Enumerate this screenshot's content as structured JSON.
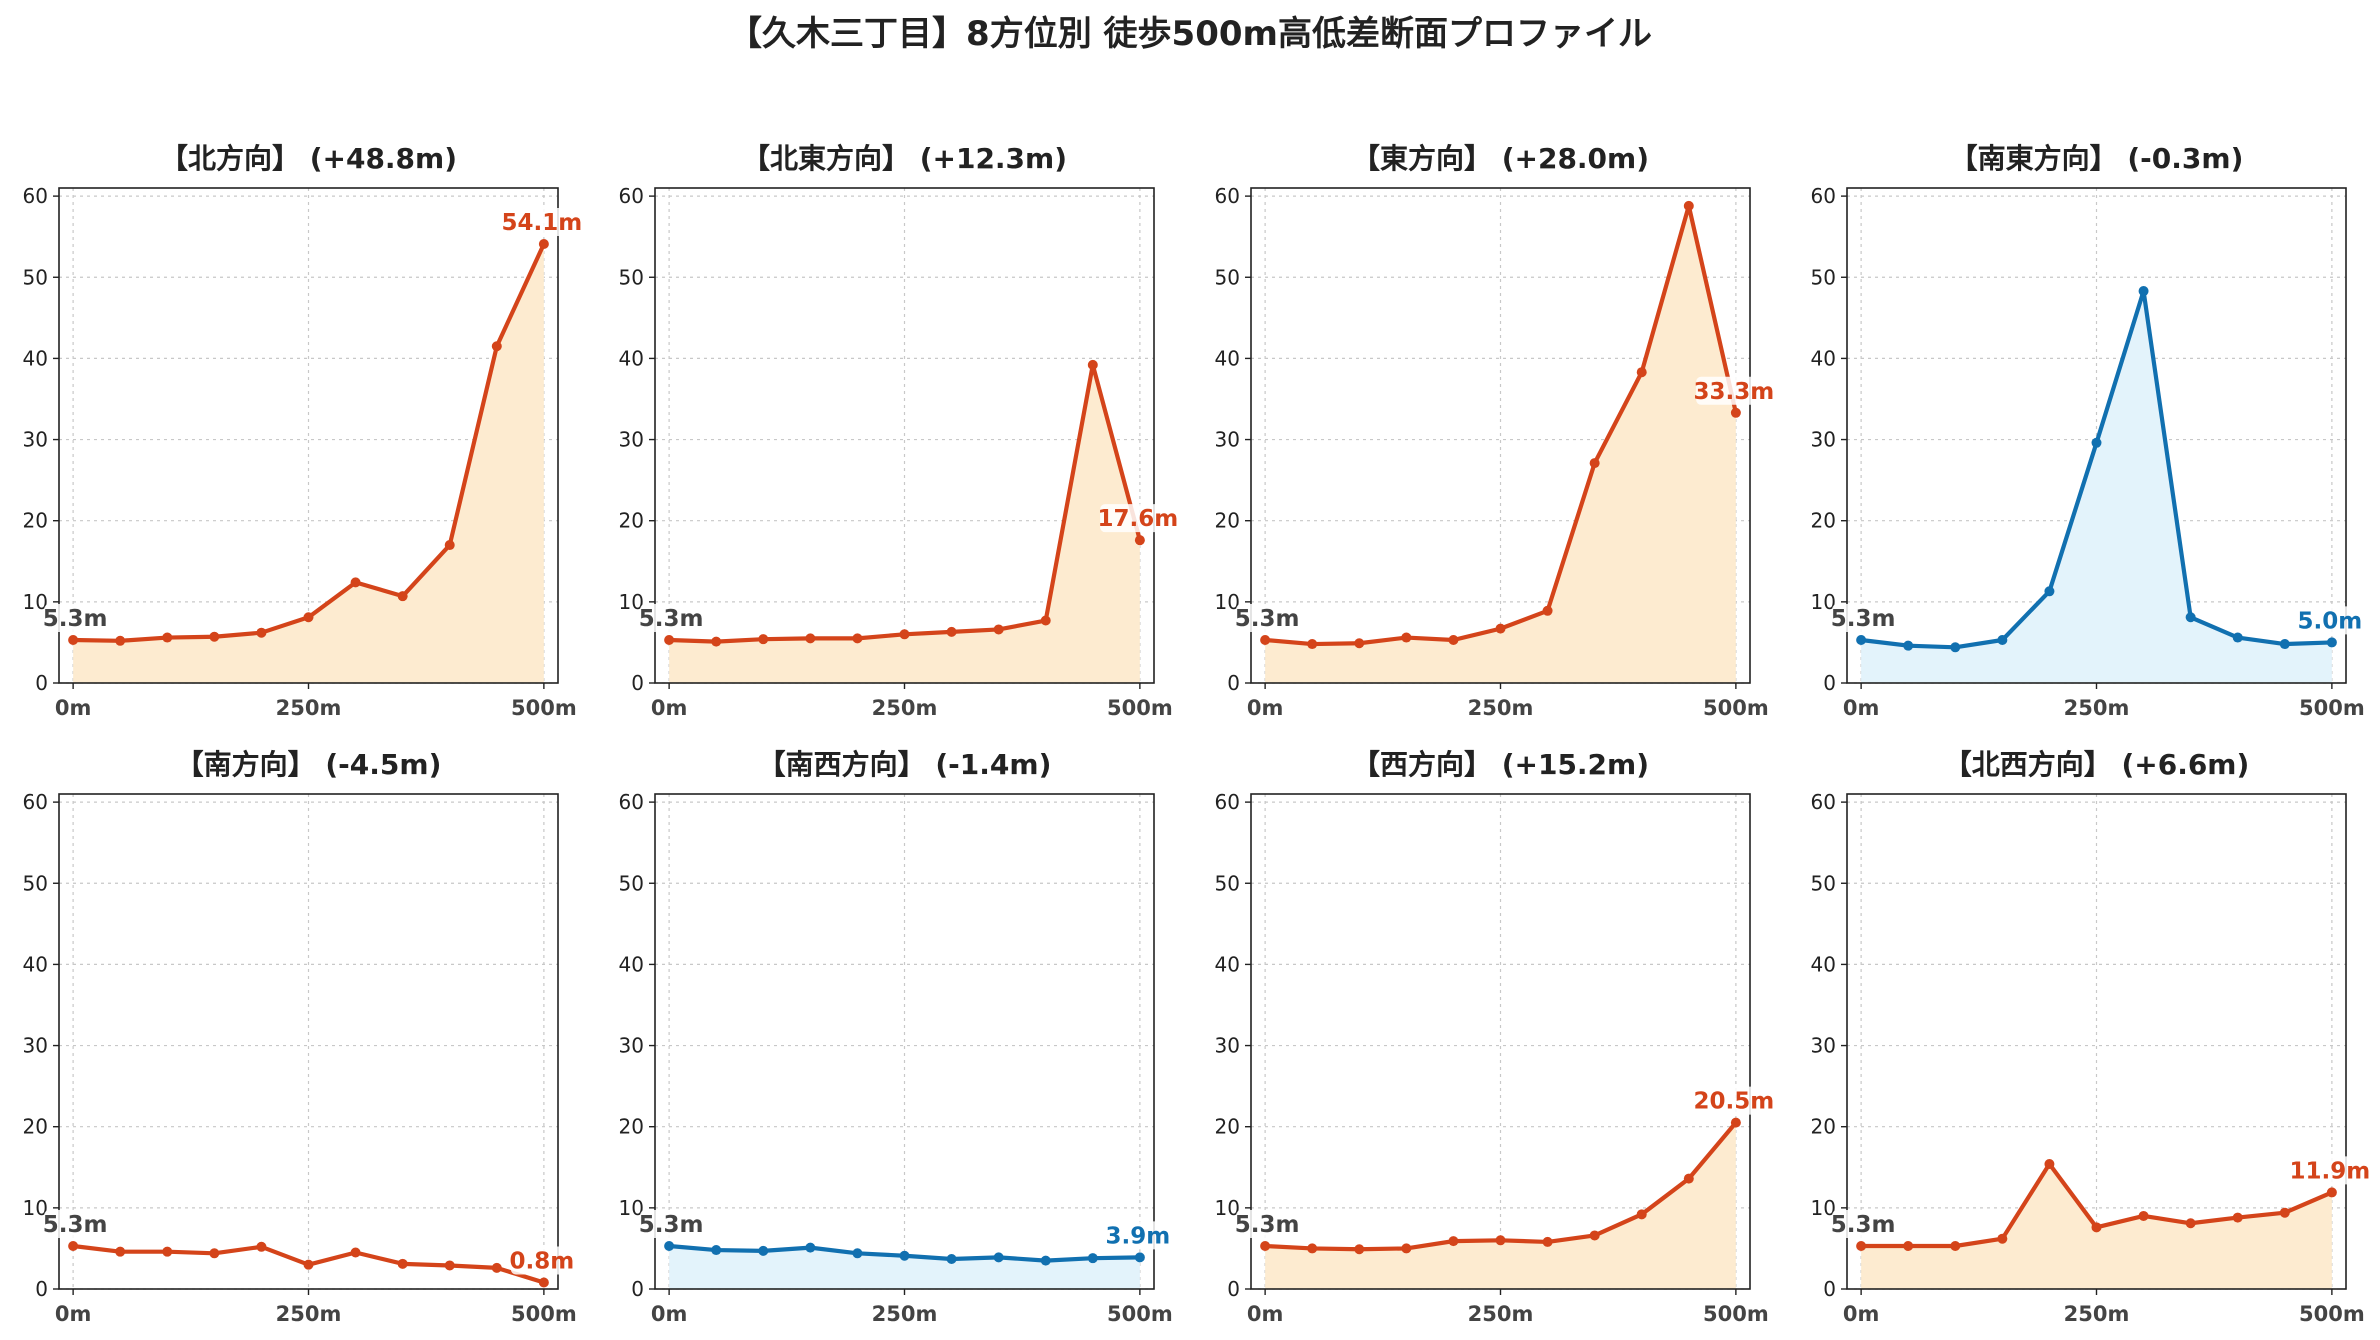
{
  "title": "【久木三丁目】8方位別 徒歩500m高低差断面プロファイル",
  "colors": {
    "up_line": "#D4441A",
    "up_fill": "#FDEBD0",
    "down_line": "#1170B0",
    "down_fill": "#E3F3FB",
    "start_label": "#444444"
  },
  "chart_data": [
    {
      "type": "area",
      "title": "【北方向】 (+48.8m)",
      "trend": "up",
      "x": [
        0,
        50,
        100,
        150,
        200,
        250,
        300,
        350,
        400,
        450,
        500
      ],
      "values": [
        5.3,
        5.2,
        5.6,
        5.7,
        6.2,
        8.1,
        12.4,
        10.7,
        17.0,
        41.5,
        54.1
      ],
      "start_label": "5.3m",
      "end_label": "54.1m",
      "xticks": [
        "0m",
        "250m",
        "500m"
      ],
      "yticks": [
        "0",
        "10",
        "20",
        "30",
        "40",
        "50",
        "60"
      ],
      "ylim": [
        0,
        61
      ],
      "xlim": [
        -15,
        515
      ],
      "grid": true
    },
    {
      "type": "area",
      "title": "【北東方向】 (+12.3m)",
      "trend": "up",
      "x": [
        0,
        50,
        100,
        150,
        200,
        250,
        300,
        350,
        400,
        450,
        500
      ],
      "values": [
        5.3,
        5.1,
        5.4,
        5.5,
        5.5,
        6.0,
        6.3,
        6.6,
        7.7,
        39.2,
        17.6
      ],
      "start_label": "5.3m",
      "end_label": "17.6m",
      "xticks": [
        "0m",
        "250m",
        "500m"
      ],
      "yticks": [
        "0",
        "10",
        "20",
        "30",
        "40",
        "50",
        "60"
      ],
      "ylim": [
        0,
        61
      ],
      "xlim": [
        -15,
        515
      ],
      "grid": true
    },
    {
      "type": "area",
      "title": "【東方向】 (+28.0m)",
      "trend": "up",
      "x": [
        0,
        50,
        100,
        150,
        200,
        250,
        300,
        350,
        400,
        450,
        500
      ],
      "values": [
        5.3,
        4.8,
        4.9,
        5.6,
        5.3,
        6.7,
        8.9,
        27.1,
        38.3,
        58.8,
        33.3
      ],
      "start_label": "5.3m",
      "end_label": "33.3m",
      "xticks": [
        "0m",
        "250m",
        "500m"
      ],
      "yticks": [
        "0",
        "10",
        "20",
        "30",
        "40",
        "50",
        "60"
      ],
      "ylim": [
        0,
        61
      ],
      "xlim": [
        -15,
        515
      ],
      "grid": true
    },
    {
      "type": "area",
      "title": "【南東方向】 (-0.3m)",
      "trend": "down",
      "x": [
        0,
        50,
        100,
        150,
        200,
        250,
        300,
        350,
        400,
        450,
        500
      ],
      "values": [
        5.3,
        4.6,
        4.4,
        5.3,
        11.3,
        29.6,
        48.3,
        8.1,
        5.6,
        4.8,
        5.0
      ],
      "start_label": "5.3m",
      "end_label": "5.0m",
      "xticks": [
        "0m",
        "250m",
        "500m"
      ],
      "yticks": [
        "0",
        "10",
        "20",
        "30",
        "40",
        "50",
        "60"
      ],
      "ylim": [
        0,
        61
      ],
      "xlim": [
        -15,
        515
      ],
      "grid": true
    },
    {
      "type": "area",
      "title": "【南方向】 (-4.5m)",
      "trend": "down_red",
      "x": [
        0,
        50,
        100,
        150,
        200,
        250,
        300,
        350,
        400,
        450,
        500
      ],
      "values": [
        5.3,
        4.6,
        4.6,
        4.4,
        5.2,
        3.0,
        4.5,
        3.1,
        2.9,
        2.6,
        0.8
      ],
      "start_label": "5.3m",
      "end_label": "0.8m",
      "xticks": [
        "0m",
        "250m",
        "500m"
      ],
      "yticks": [
        "0",
        "10",
        "20",
        "30",
        "40",
        "50",
        "60"
      ],
      "ylim": [
        0,
        61
      ],
      "xlim": [
        -15,
        515
      ],
      "grid": true
    },
    {
      "type": "area",
      "title": "【南西方向】 (-1.4m)",
      "trend": "down",
      "x": [
        0,
        50,
        100,
        150,
        200,
        250,
        300,
        350,
        400,
        450,
        500
      ],
      "values": [
        5.3,
        4.8,
        4.7,
        5.1,
        4.4,
        4.1,
        3.7,
        3.9,
        3.5,
        3.8,
        3.9
      ],
      "start_label": "5.3m",
      "end_label": "3.9m",
      "xticks": [
        "0m",
        "250m",
        "500m"
      ],
      "yticks": [
        "0",
        "10",
        "20",
        "30",
        "40",
        "50",
        "60"
      ],
      "ylim": [
        0,
        61
      ],
      "xlim": [
        -15,
        515
      ],
      "grid": true
    },
    {
      "type": "area",
      "title": "【西方向】 (+15.2m)",
      "trend": "up",
      "x": [
        0,
        50,
        100,
        150,
        200,
        250,
        300,
        350,
        400,
        450,
        500
      ],
      "values": [
        5.3,
        5.0,
        4.9,
        5.0,
        5.9,
        6.0,
        5.8,
        6.6,
        9.2,
        13.6,
        20.5
      ],
      "start_label": "5.3m",
      "end_label": "20.5m",
      "xticks": [
        "0m",
        "250m",
        "500m"
      ],
      "yticks": [
        "0",
        "10",
        "20",
        "30",
        "40",
        "50",
        "60"
      ],
      "ylim": [
        0,
        61
      ],
      "xlim": [
        -15,
        515
      ],
      "grid": true
    },
    {
      "type": "area",
      "title": "【北西方向】 (+6.6m)",
      "trend": "up",
      "x": [
        0,
        50,
        100,
        150,
        200,
        250,
        300,
        350,
        400,
        450,
        500
      ],
      "values": [
        5.3,
        5.3,
        5.3,
        6.2,
        15.4,
        7.6,
        9.0,
        8.1,
        8.8,
        9.4,
        11.9
      ],
      "start_label": "5.3m",
      "end_label": "11.9m",
      "xticks": [
        "0m",
        "250m",
        "500m"
      ],
      "yticks": [
        "0",
        "10",
        "20",
        "30",
        "40",
        "50",
        "60"
      ],
      "ylim": [
        0,
        61
      ],
      "xlim": [
        -15,
        515
      ],
      "grid": true
    }
  ]
}
